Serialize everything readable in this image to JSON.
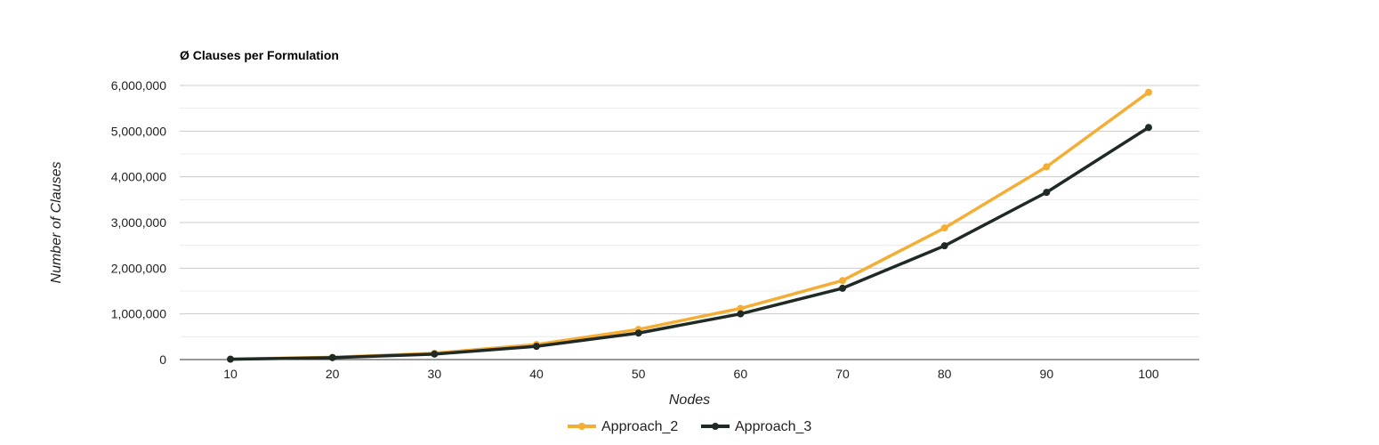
{
  "chart_data": {
    "type": "line",
    "title": "Ø Clauses per Formulation",
    "xlabel": "Nodes",
    "ylabel": "Number of Clauses",
    "categories": [
      "10",
      "20",
      "30",
      "40",
      "50",
      "60",
      "70",
      "80",
      "90",
      "100"
    ],
    "ylim": [
      0,
      6000000
    ],
    "yticks": [
      "0",
      "1,000,000",
      "2,000,000",
      "3,000,000",
      "4,000,000",
      "5,000,000",
      "6,000,000"
    ],
    "ytick_values": [
      0,
      1000000,
      2000000,
      3000000,
      4000000,
      5000000,
      6000000
    ],
    "grid": true,
    "legend_position": "bottom",
    "series": [
      {
        "name": "Approach_2",
        "color": "#f4ae35",
        "values": [
          9000,
          50000,
          140000,
          330000,
          660000,
          1120000,
          1730000,
          2880000,
          4220000,
          5850000
        ]
      },
      {
        "name": "Approach_3",
        "color": "#1f2a25",
        "values": [
          8000,
          42000,
          120000,
          290000,
          580000,
          1000000,
          1560000,
          2490000,
          3660000,
          5080000
        ]
      }
    ]
  }
}
